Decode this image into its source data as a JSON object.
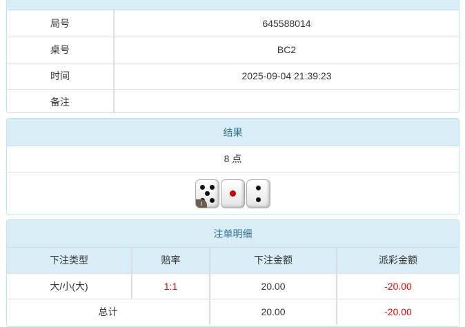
{
  "info": {
    "rows": [
      {
        "label": "局号",
        "value": "645588014"
      },
      {
        "label": "桌号",
        "value": "BC2"
      },
      {
        "label": "时间",
        "value": "2025-09-04 21:39:23"
      },
      {
        "label": "备注",
        "value": ""
      }
    ]
  },
  "result": {
    "title": "结果",
    "points": "8 点",
    "dice": [
      5,
      1,
      2
    ],
    "info_badge": "i"
  },
  "bets": {
    "title": "注单明细",
    "headers": [
      "下注类型",
      "赔率",
      "下注金额",
      "派彩金额"
    ],
    "rows": [
      {
        "type": "大/小(大)",
        "odds": "1:1",
        "amount": "20.00",
        "payout": "-20.00"
      }
    ],
    "total": {
      "label": "总计",
      "amount": "20.00",
      "payout": "-20.00"
    }
  },
  "colors": {
    "header_bg": "#d9edf7",
    "header_text": "#31708f",
    "negative": "#e00000"
  }
}
